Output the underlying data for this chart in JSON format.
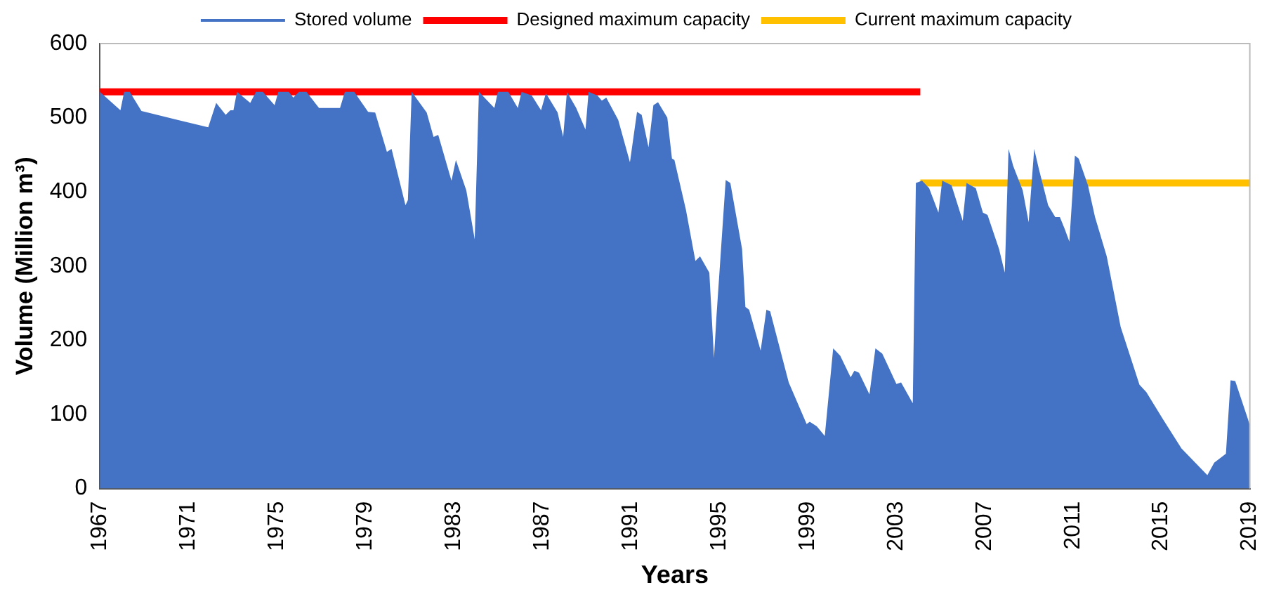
{
  "chart_data": {
    "type": "area",
    "xlabel": "Years",
    "ylabel": "Volume (Million m³)",
    "xlim": [
      1967,
      2019
    ],
    "xticks": [
      1967,
      1971,
      1975,
      1979,
      1983,
      1987,
      1991,
      1995,
      1999,
      2003,
      2007,
      2011,
      2015,
      2019
    ],
    "ylim": [
      0,
      600
    ],
    "yticks": [
      0,
      100,
      200,
      300,
      400,
      500,
      600
    ],
    "grid": false,
    "legend": "top",
    "series": [
      {
        "name": "Stored volume",
        "type": "area",
        "color": "#4472c4",
        "x": [
          1967,
          1967.93,
          1968.1,
          1968.35,
          1968.88,
          1971.9,
          1972.26,
          1972.69,
          1972.9,
          1973.04,
          1973.2,
          1973.8,
          1974.06,
          1974.37,
          1974.9,
          1975.07,
          1975.54,
          1975.75,
          1976,
          1976.34,
          1976.91,
          1977.86,
          1978.08,
          1978.5,
          1979.13,
          1979.45,
          1979.98,
          1980.19,
          1980.82,
          1980.93,
          1981.1,
          1981.78,
          1982.09,
          1982.3,
          1982.9,
          1983.1,
          1983.57,
          1983.95,
          1984.14,
          1984.84,
          1985,
          1985.47,
          1985.9,
          1986.07,
          1986.53,
          1986.95,
          1987.17,
          1987.7,
          1987.95,
          1988.12,
          1988.54,
          1988.96,
          1989.1,
          1989.5,
          1989.7,
          1989.9,
          1990.44,
          1990.97,
          1991.29,
          1991.5,
          1991.81,
          1992.03,
          1992.24,
          1992.66,
          1992.87,
          1992.98,
          1993.5,
          1993.93,
          1994.14,
          1994.56,
          1994.77,
          1994.88,
          1995.3,
          1995.51,
          1996.04,
          1996.19,
          1996.36,
          1996.88,
          1997.14,
          1997.31,
          1998.15,
          1998.96,
          1999.1,
          1999.42,
          1999.78,
          2000.16,
          2000.48,
          2000.95,
          2001.12,
          2001.33,
          2001.8,
          2002.07,
          2002.38,
          2003.02,
          2003.23,
          2003.76,
          2003.9,
          2004.18,
          2004.5,
          2004.92,
          2005.09,
          2005.51,
          2006.02,
          2006.19,
          2006.61,
          2006.93,
          2007.14,
          2007.66,
          2007.92,
          2008.09,
          2008.3,
          2008.73,
          2009,
          2009.25,
          2009.46,
          2009.88,
          2010.2,
          2010.41,
          2010.63,
          2010.84,
          2011.09,
          2011.26,
          2011.68,
          2012,
          2012.53,
          2013.16,
          2014.01,
          2014.32,
          2015.06,
          2015.91,
          2017.08,
          2017.39,
          2017.92,
          2018.13,
          2018.34,
          2018.91,
          2019
        ],
        "values": [
          535,
          510,
          535,
          535,
          509,
          487,
          520,
          504,
          510,
          510,
          535,
          520,
          535,
          535,
          517,
          535,
          535,
          527,
          535,
          535,
          513,
          513,
          535,
          535,
          508,
          507,
          454,
          458,
          382,
          389,
          535,
          507,
          474,
          477,
          415,
          443,
          402,
          336,
          535,
          513,
          535,
          535,
          513,
          535,
          530,
          510,
          533,
          507,
          474,
          535,
          513,
          484,
          535,
          530,
          523,
          527,
          497,
          440,
          508,
          504,
          460,
          517,
          521,
          500,
          445,
          443,
          376,
          307,
          313,
          291,
          176,
          231,
          416,
          412,
          323,
          245,
          241,
          186,
          241,
          239,
          143,
          87,
          90,
          84,
          71,
          189,
          179,
          150,
          159,
          156,
          127,
          189,
          182,
          141,
          143,
          115,
          412,
          415,
          405,
          372,
          415,
          409,
          361,
          412,
          405,
          372,
          369,
          323,
          291,
          458,
          435,
          402,
          359,
          458,
          431,
          382,
          366,
          366,
          350,
          333,
          449,
          445,
          409,
          366,
          313,
          218,
          140,
          130,
          94,
          54,
          18,
          35,
          47,
          146,
          145,
          94,
          85
        ]
      },
      {
        "name": "Designed maximum capacity",
        "type": "line",
        "color": "#ff0000",
        "x": [
          1967,
          2004.1
        ],
        "values": [
          535,
          535
        ]
      },
      {
        "name": "Current maximum capacity",
        "type": "line",
        "color": "#ffc000",
        "x": [
          2004.1,
          2019
        ],
        "values": [
          412,
          412
        ]
      }
    ]
  }
}
